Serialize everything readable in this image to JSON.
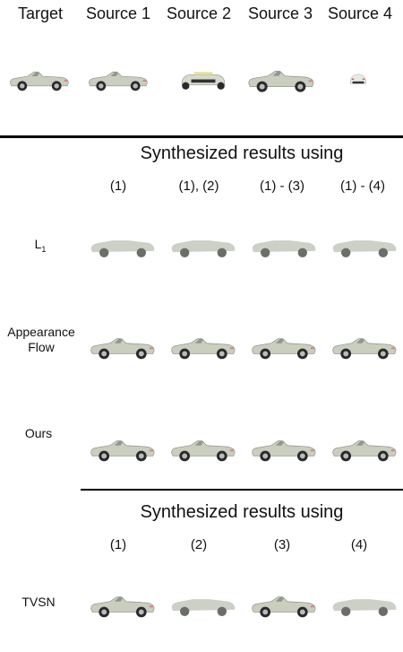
{
  "top_headers": [
    "Target",
    "Source 1",
    "Source 2",
    "Source 3",
    "Source 4"
  ],
  "section1": {
    "title": "Synthesized results using",
    "columns": [
      "(1)",
      "(1), (2)",
      "(1) - (3)",
      "(1) - (4)"
    ],
    "rows": [
      {
        "label_main": "L",
        "label_sub": "1"
      },
      {
        "label": "Appearance\nFlow"
      },
      {
        "label": "Ours"
      }
    ]
  },
  "section2": {
    "title": "Synthesized results using",
    "columns": [
      "(1)",
      "(2)",
      "(3)",
      "(4)"
    ],
    "rows": [
      {
        "label": "TVSN"
      }
    ]
  },
  "colors": {
    "car_body": "#c9cebe",
    "tire": "#2a2a2a",
    "rule": "#000000"
  }
}
